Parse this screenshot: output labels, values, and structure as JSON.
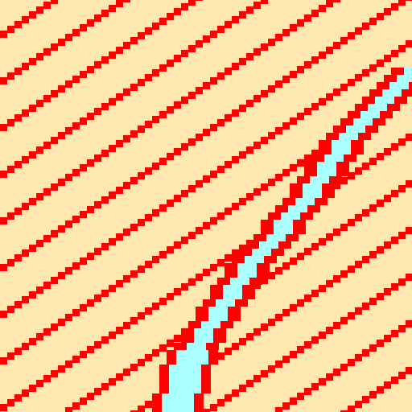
{
  "colors": {
    "sand": "#FFE8B0",
    "stripe": "#FF0000",
    "water": "#AAFFFF"
  },
  "tiles": {
    "background": "sand",
    "diagonal_stripes": "stripe",
    "river": "water",
    "river_bank": "stripe"
  }
}
